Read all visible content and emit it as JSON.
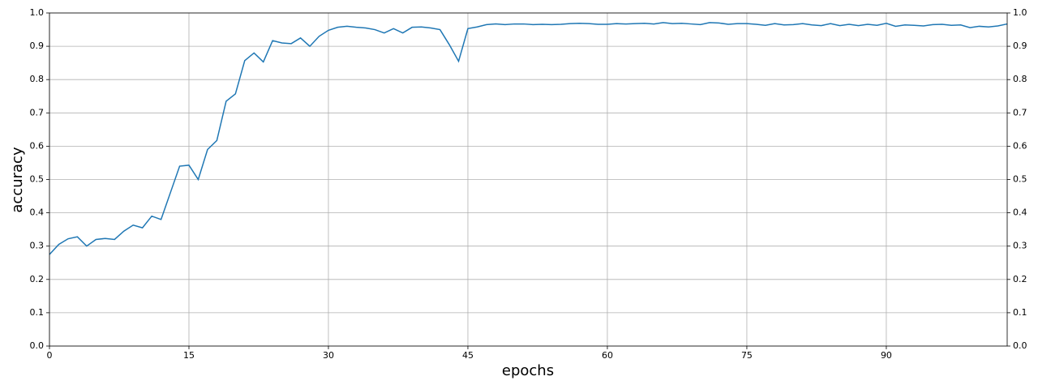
{
  "chart_data": {
    "type": "line",
    "x_label": "epochs",
    "y_label": "accuracy",
    "x": [
      0,
      1,
      2,
      3,
      4,
      5,
      6,
      7,
      8,
      9,
      10,
      11,
      12,
      13,
      14,
      15,
      16,
      17,
      18,
      19,
      20,
      21,
      22,
      23,
      24,
      25,
      26,
      27,
      28,
      29,
      30,
      31,
      32,
      33,
      34,
      35,
      36,
      37,
      38,
      39,
      40,
      41,
      42,
      43,
      44,
      45,
      46,
      47,
      48,
      49,
      50,
      51,
      52,
      53,
      54,
      55,
      56,
      57,
      58,
      59,
      60,
      61,
      62,
      63,
      64,
      65,
      66,
      67,
      68,
      69,
      70,
      71,
      72,
      73,
      74,
      75,
      76,
      77,
      78,
      79,
      80,
      81,
      82,
      83,
      84,
      85,
      86,
      87,
      88,
      89,
      90,
      91,
      92,
      93,
      94,
      95,
      96,
      97,
      98,
      99,
      100,
      101,
      102,
      103
    ],
    "series": [
      {
        "name": "accuracy",
        "color": "#1f77b4",
        "values": [
          0.275,
          0.305,
          0.322,
          0.328,
          0.3,
          0.32,
          0.323,
          0.32,
          0.345,
          0.363,
          0.355,
          0.39,
          0.38,
          0.46,
          0.54,
          0.543,
          0.5,
          0.59,
          0.617,
          0.735,
          0.757,
          0.857,
          0.88,
          0.853,
          0.917,
          0.91,
          0.908,
          0.925,
          0.9,
          0.93,
          0.948,
          0.957,
          0.96,
          0.957,
          0.955,
          0.95,
          0.94,
          0.953,
          0.94,
          0.957,
          0.958,
          0.955,
          0.95,
          0.905,
          0.855,
          0.953,
          0.958,
          0.965,
          0.967,
          0.965,
          0.967,
          0.967,
          0.965,
          0.966,
          0.965,
          0.966,
          0.968,
          0.969,
          0.968,
          0.966,
          0.966,
          0.968,
          0.967,
          0.968,
          0.969,
          0.967,
          0.971,
          0.968,
          0.969,
          0.967,
          0.965,
          0.971,
          0.97,
          0.966,
          0.968,
          0.968,
          0.966,
          0.963,
          0.968,
          0.964,
          0.965,
          0.968,
          0.964,
          0.962,
          0.968,
          0.962,
          0.966,
          0.962,
          0.966,
          0.963,
          0.969,
          0.96,
          0.964,
          0.963,
          0.961,
          0.965,
          0.966,
          0.963,
          0.964,
          0.956,
          0.96,
          0.958,
          0.961,
          0.967
        ]
      }
    ],
    "xlim": [
      0,
      103
    ],
    "ylim": [
      0,
      1
    ],
    "xticks": [
      0,
      15,
      30,
      45,
      60,
      75,
      90
    ],
    "yticks": [
      {
        "value": 0,
        "label": "0.0"
      },
      0.1,
      0.2,
      0.3,
      0.4,
      0.5,
      0.6,
      0.7,
      0.8,
      0.9,
      {
        "value": 1,
        "label": "1.0"
      }
    ],
    "grid": true
  }
}
